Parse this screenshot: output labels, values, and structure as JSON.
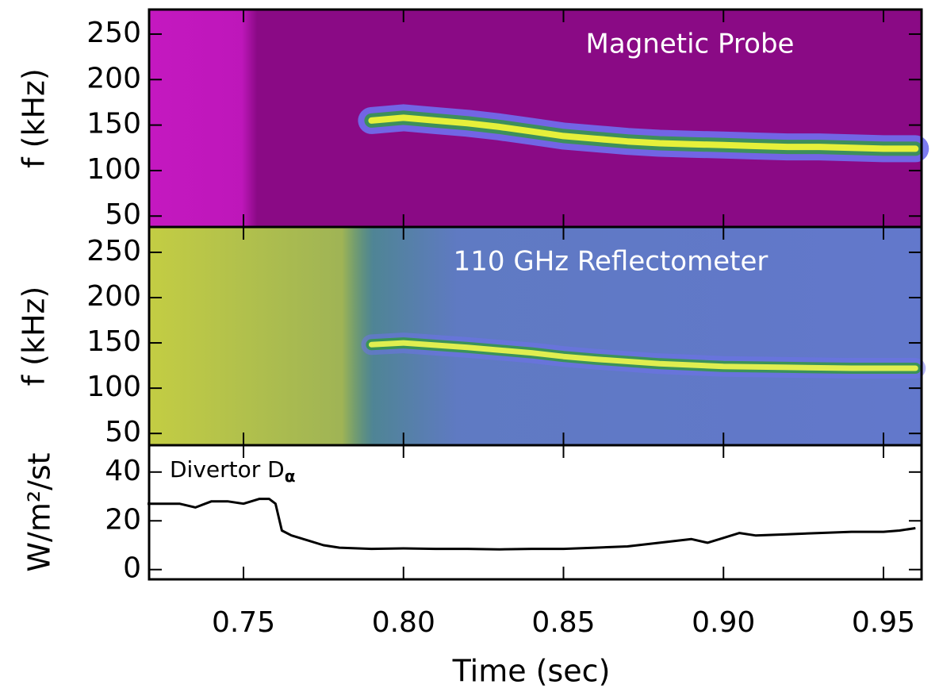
{
  "chart_data": [
    {
      "type": "spectrogram",
      "annotation": "Magnetic Probe",
      "ylabel": "f (kHz)",
      "background": "#8a0a85",
      "color": "#e6f03a",
      "x": [
        0.79,
        0.8,
        0.81,
        0.82,
        0.83,
        0.84,
        0.85,
        0.86,
        0.87,
        0.88,
        0.89,
        0.9,
        0.91,
        0.92,
        0.93,
        0.94,
        0.95,
        0.96
      ],
      "values": [
        155,
        158,
        155,
        152,
        148,
        143,
        138,
        135,
        132,
        130,
        129,
        128,
        127,
        126,
        126,
        125,
        124,
        124
      ],
      "ylim": [
        38,
        277
      ],
      "yticks": [
        50,
        100,
        150,
        200,
        250
      ]
    },
    {
      "type": "spectrogram",
      "annotation": "110 GHz  Reflectometer",
      "ylabel": "f (kHz)",
      "background": "#6f6ff0",
      "color": "#e0ee50",
      "x": [
        0.79,
        0.8,
        0.82,
        0.84,
        0.85,
        0.86,
        0.88,
        0.9,
        0.92,
        0.94,
        0.96
      ],
      "values": [
        148,
        150,
        145,
        139,
        135,
        132,
        127,
        124,
        123,
        122,
        122
      ],
      "ylim": [
        37,
        278
      ],
      "yticks": [
        50,
        100,
        150,
        200,
        250
      ]
    },
    {
      "type": "line",
      "annotation": {
        "text": "Divertor D",
        "subscript": "α"
      },
      "ylabel": "W/m²/st",
      "xlabel": "Time (sec)",
      "color": "#000000",
      "x": [
        0.72,
        0.73,
        0.735,
        0.74,
        0.745,
        0.75,
        0.755,
        0.758,
        0.76,
        0.762,
        0.765,
        0.77,
        0.775,
        0.78,
        0.79,
        0.8,
        0.81,
        0.82,
        0.83,
        0.84,
        0.85,
        0.86,
        0.87,
        0.88,
        0.89,
        0.895,
        0.9,
        0.905,
        0.91,
        0.92,
        0.93,
        0.94,
        0.95,
        0.955,
        0.96
      ],
      "values": [
        27,
        27,
        25.5,
        28,
        28,
        27,
        29,
        29,
        27,
        16,
        14,
        12,
        10,
        9,
        8.5,
        8.7,
        8.5,
        8.5,
        8.3,
        8.5,
        8.5,
        9,
        9.5,
        11,
        12.5,
        11,
        13,
        15,
        14,
        14.5,
        15,
        15.5,
        15.5,
        16,
        17
      ],
      "xlim": [
        0.7205,
        0.9619
      ],
      "xticks": [
        0.75,
        {
          "value": 0.8,
          "label": "0.80"
        },
        0.85,
        {
          "value": 0.9,
          "label": "0.90"
        },
        0.95
      ],
      "ylim": [
        -4,
        51
      ],
      "yticks": [
        0,
        20,
        40
      ]
    }
  ]
}
